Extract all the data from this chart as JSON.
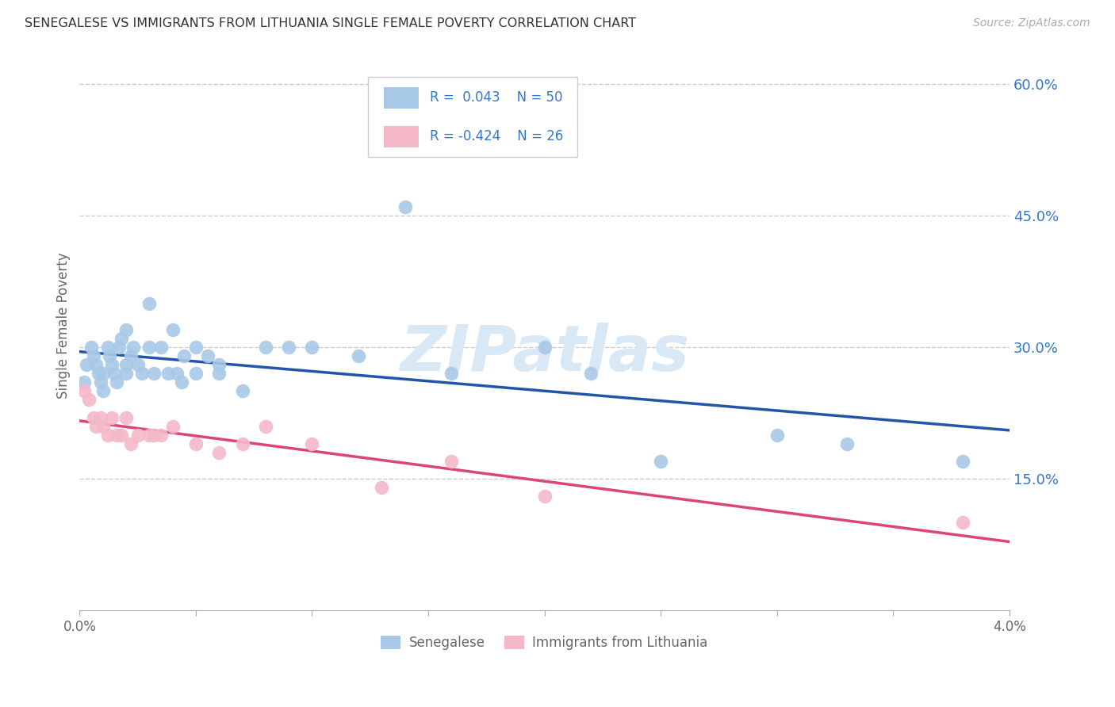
{
  "title": "SENEGALESE VS IMMIGRANTS FROM LITHUANIA SINGLE FEMALE POVERTY CORRELATION CHART",
  "source": "Source: ZipAtlas.com",
  "ylabel": "Single Female Poverty",
  "right_yticks": [
    "60.0%",
    "45.0%",
    "30.0%",
    "15.0%"
  ],
  "right_ytick_vals": [
    0.6,
    0.45,
    0.3,
    0.15
  ],
  "legend_blue_label": "Senegalese",
  "legend_pink_label": "Immigrants from Lithuania",
  "legend_r_blue": "R =  0.043",
  "legend_n_blue": "N = 50",
  "legend_r_pink": "R = -0.424",
  "legend_n_pink": "N = 26",
  "blue_color": "#a8c8e8",
  "pink_color": "#f4b8c8",
  "blue_line_color": "#2255aa",
  "pink_line_color": "#dd4477",
  "text_color": "#3377cc",
  "blue_scatter_x": [
    0.0002,
    0.0003,
    0.0005,
    0.0006,
    0.0007,
    0.0008,
    0.0009,
    0.001,
    0.001,
    0.0012,
    0.0013,
    0.0014,
    0.0015,
    0.0016,
    0.0017,
    0.0018,
    0.002,
    0.002,
    0.002,
    0.0022,
    0.0023,
    0.0025,
    0.0027,
    0.003,
    0.003,
    0.0032,
    0.0035,
    0.0038,
    0.004,
    0.0042,
    0.0044,
    0.0045,
    0.005,
    0.005,
    0.0055,
    0.006,
    0.006,
    0.007,
    0.008,
    0.009,
    0.01,
    0.012,
    0.014,
    0.016,
    0.02,
    0.022,
    0.025,
    0.03,
    0.033,
    0.038
  ],
  "blue_scatter_y": [
    0.26,
    0.28,
    0.3,
    0.29,
    0.28,
    0.27,
    0.26,
    0.27,
    0.25,
    0.3,
    0.29,
    0.28,
    0.27,
    0.26,
    0.3,
    0.31,
    0.32,
    0.28,
    0.27,
    0.29,
    0.3,
    0.28,
    0.27,
    0.35,
    0.3,
    0.27,
    0.3,
    0.27,
    0.32,
    0.27,
    0.26,
    0.29,
    0.27,
    0.3,
    0.29,
    0.28,
    0.27,
    0.25,
    0.3,
    0.3,
    0.3,
    0.29,
    0.46,
    0.27,
    0.3,
    0.27,
    0.17,
    0.2,
    0.19,
    0.17
  ],
  "pink_scatter_x": [
    0.0002,
    0.0004,
    0.0006,
    0.0007,
    0.0009,
    0.001,
    0.0012,
    0.0014,
    0.0016,
    0.0018,
    0.002,
    0.0022,
    0.0025,
    0.003,
    0.0032,
    0.0035,
    0.004,
    0.005,
    0.006,
    0.007,
    0.008,
    0.01,
    0.013,
    0.016,
    0.02,
    0.038
  ],
  "pink_scatter_y": [
    0.25,
    0.24,
    0.22,
    0.21,
    0.22,
    0.21,
    0.2,
    0.22,
    0.2,
    0.2,
    0.22,
    0.19,
    0.2,
    0.2,
    0.2,
    0.2,
    0.21,
    0.19,
    0.18,
    0.19,
    0.21,
    0.19,
    0.14,
    0.17,
    0.13,
    0.1
  ],
  "xlim": [
    0.0,
    0.04
  ],
  "ylim": [
    0.0,
    0.65
  ],
  "figsize": [
    14.06,
    8.92
  ],
  "dpi": 100,
  "background_color": "#ffffff",
  "grid_color": "#cccccc",
  "watermark_text": "ZIPatlas",
  "watermark_color": "#d8e8f4"
}
